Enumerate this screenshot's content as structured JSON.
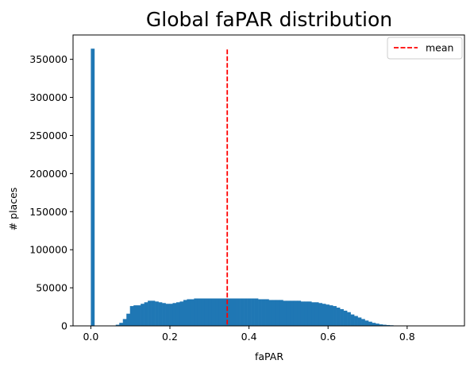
{
  "chart_data": {
    "type": "bar",
    "title": "Global faPAR distribution",
    "xlabel": "faPAR",
    "ylabel": "# places",
    "xlim": [
      -0.045,
      0.945
    ],
    "ylim": [
      0,
      382000
    ],
    "xticks": [
      0.0,
      0.2,
      0.4,
      0.6,
      0.8
    ],
    "xtick_labels": [
      "0.0",
      "0.2",
      "0.4",
      "0.6",
      "0.8"
    ],
    "yticks": [
      0,
      50000,
      100000,
      150000,
      200000,
      250000,
      300000,
      350000
    ],
    "ytick_labels": [
      "0",
      "50000",
      "100000",
      "150000",
      "200000",
      "250000",
      "300000",
      "350000"
    ],
    "bin_width": 0.009,
    "bin_starts": [
      0.0,
      0.009,
      0.018,
      0.027,
      0.036,
      0.045,
      0.054,
      0.063,
      0.072,
      0.081,
      0.09,
      0.099,
      0.108,
      0.117,
      0.126,
      0.135,
      0.144,
      0.153,
      0.162,
      0.171,
      0.18,
      0.189,
      0.198,
      0.207,
      0.216,
      0.225,
      0.234,
      0.243,
      0.252,
      0.261,
      0.27,
      0.279,
      0.288,
      0.297,
      0.306,
      0.315,
      0.324,
      0.333,
      0.342,
      0.351,
      0.36,
      0.369,
      0.378,
      0.387,
      0.396,
      0.405,
      0.414,
      0.423,
      0.432,
      0.441,
      0.45,
      0.459,
      0.468,
      0.477,
      0.486,
      0.495,
      0.504,
      0.513,
      0.522,
      0.531,
      0.54,
      0.549,
      0.558,
      0.567,
      0.576,
      0.585,
      0.594,
      0.603,
      0.612,
      0.621,
      0.63,
      0.639,
      0.648,
      0.657,
      0.666,
      0.675,
      0.684,
      0.693,
      0.702,
      0.711,
      0.72,
      0.729,
      0.738,
      0.747,
      0.756,
      0.765,
      0.774,
      0.783,
      0.792,
      0.801,
      0.81,
      0.819,
      0.828,
      0.837,
      0.846,
      0.855,
      0.864,
      0.873,
      0.882
    ],
    "series": [
      {
        "name": "",
        "color": "#1f77b4",
        "values": [
          364000,
          0,
          0,
          0,
          0,
          0,
          200,
          1500,
          4000,
          9000,
          16000,
          26000,
          27000,
          27000,
          29000,
          31000,
          33000,
          33000,
          32000,
          31000,
          30000,
          29000,
          29000,
          30000,
          31000,
          32000,
          34000,
          35000,
          35000,
          36000,
          36000,
          36000,
          36000,
          36000,
          36000,
          36000,
          36000,
          36000,
          36000,
          36000,
          36000,
          36000,
          36000,
          36000,
          36000,
          36000,
          36000,
          35000,
          35000,
          35000,
          34000,
          34000,
          34000,
          34000,
          33000,
          33000,
          33000,
          33000,
          33000,
          32000,
          32000,
          32000,
          31000,
          31000,
          30000,
          29000,
          28000,
          27000,
          26000,
          24000,
          22000,
          20000,
          18000,
          15000,
          13000,
          11000,
          9000,
          7000,
          5500,
          4000,
          3000,
          2000,
          1500,
          1100,
          800,
          500,
          300,
          200,
          100,
          50,
          0,
          0,
          0,
          0,
          0,
          0,
          0,
          0,
          0
        ]
      }
    ],
    "mean_line": {
      "x": 0.345,
      "y_top": 363000,
      "color": "#ff0000",
      "style": "dashed"
    },
    "legend": {
      "position": "top-right",
      "entries": [
        {
          "label": "mean",
          "color": "#ff0000",
          "style": "dashed"
        }
      ]
    },
    "grid": false
  }
}
